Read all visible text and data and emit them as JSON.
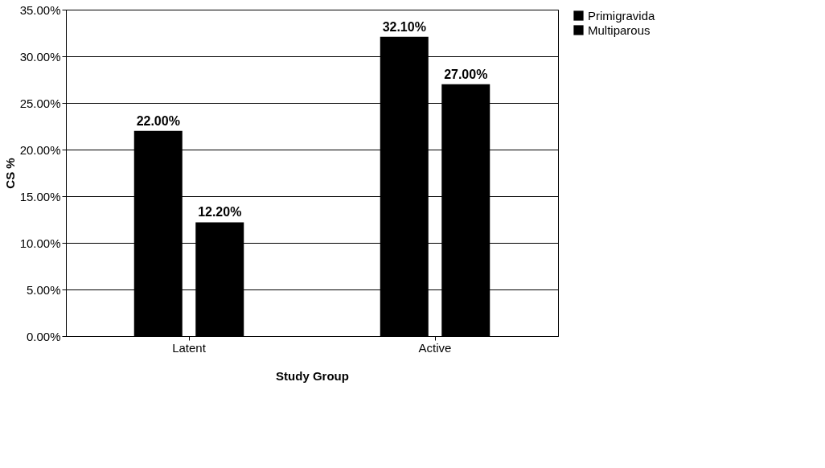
{
  "chart_data": {
    "type": "bar",
    "xlabel": "Study Group",
    "ylabel": "CS %",
    "categories": [
      "Latent",
      "Active"
    ],
    "series": [
      {
        "name": "Primigravida",
        "color": "#000000",
        "values": [
          22.0,
          32.1
        ],
        "value_labels": [
          "22.00%",
          "32.10%"
        ]
      },
      {
        "name": "Multiparous",
        "color": "#000000",
        "values": [
          12.2,
          27.0
        ],
        "value_labels": [
          "12.20%",
          "27.00%"
        ]
      }
    ],
    "ylim": [
      0,
      35
    ],
    "yticks": [
      {
        "value": 0,
        "label": "0.00%"
      },
      {
        "value": 5,
        "label": "5.00%"
      },
      {
        "value": 10,
        "label": "10.00%"
      },
      {
        "value": 15,
        "label": "15.00%"
      },
      {
        "value": 20,
        "label": "20.00%"
      },
      {
        "value": 25,
        "label": "25.00%"
      },
      {
        "value": 30,
        "label": "30.00%"
      },
      {
        "value": 35,
        "label": "35.00%"
      }
    ],
    "grid": "y",
    "legend": "right"
  }
}
